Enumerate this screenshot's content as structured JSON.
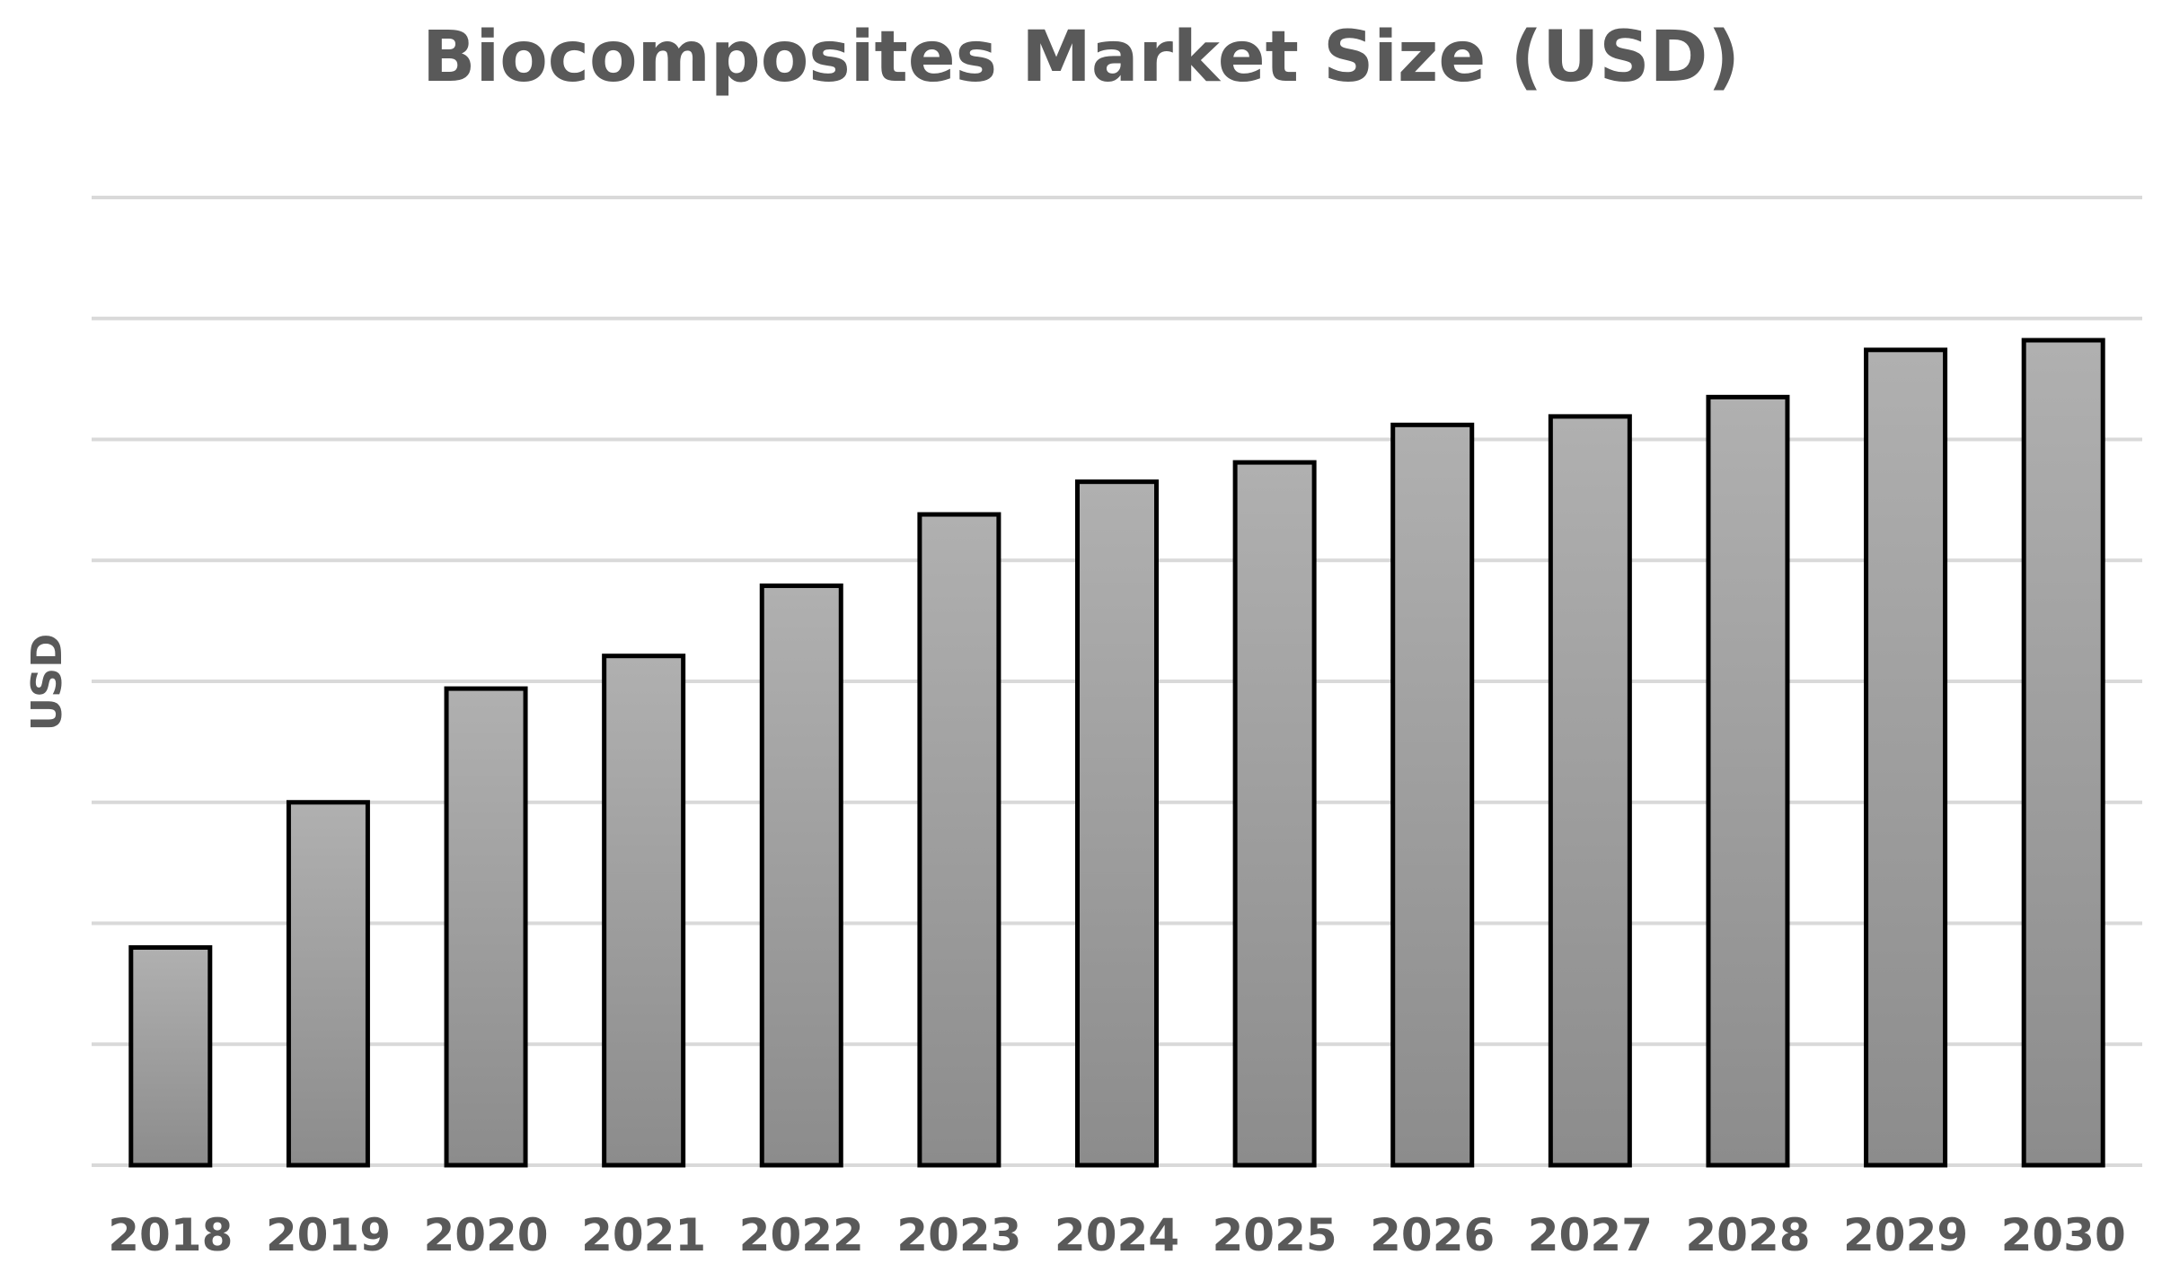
{
  "chart_data": {
    "type": "bar",
    "title": "Biocomposites Market Size (USD)",
    "xlabel": "",
    "ylabel": "USD",
    "categories": [
      "2018",
      "2019",
      "2020",
      "2021",
      "2022",
      "2023",
      "2024",
      "2025",
      "2026",
      "2027",
      "2028",
      "2029",
      "2030"
    ],
    "values": [
      18,
      30,
      39.4,
      42.1,
      47.9,
      53.8,
      56.5,
      58.1,
      61.2,
      61.9,
      63.5,
      67.4,
      68.2
    ],
    "ylim": [
      0,
      80
    ],
    "y_gridline_step": 10,
    "y_tick_labels_shown": false,
    "grid": true,
    "legend": "none",
    "colors": {
      "bar_top": "#b0b0b0",
      "bar_bottom": "#8c8c8c",
      "bar_border": "#000000",
      "gridline": "#d9d9d9",
      "text": "#595959"
    }
  }
}
